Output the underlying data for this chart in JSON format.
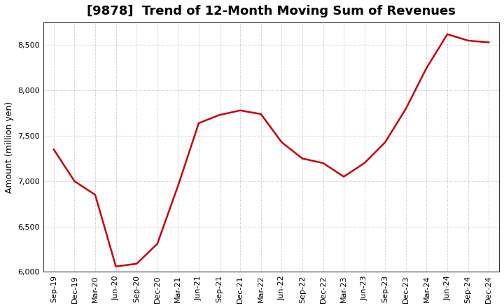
{
  "title": "[9878]  Trend of 12-Month Moving Sum of Revenues",
  "ylabel": "Amount (million yen)",
  "line_color": "#cc0000",
  "line_width": 1.8,
  "background_color": "#ffffff",
  "grid_color": "#999999",
  "ylim": [
    6000,
    8750
  ],
  "yticks": [
    6000,
    6500,
    7000,
    7500,
    8000,
    8500
  ],
  "labels": [
    "Sep-19",
    "Dec-19",
    "Mar-20",
    "Jun-20",
    "Sep-20",
    "Dec-20",
    "Mar-21",
    "Jun-21",
    "Sep-21",
    "Dec-21",
    "Mar-22",
    "Jun-22",
    "Sep-22",
    "Dec-22",
    "Mar-23",
    "Jun-23",
    "Sep-23",
    "Dec-23",
    "Mar-24",
    "Jun-24",
    "Sep-24",
    "Dec-24"
  ],
  "values": [
    7350,
    7000,
    6850,
    6060,
    6090,
    6310,
    6950,
    7640,
    7730,
    7780,
    7740,
    7430,
    7250,
    7200,
    7050,
    7200,
    7430,
    7800,
    8250,
    8620,
    8550,
    8530
  ],
  "title_fontsize": 13,
  "ylabel_fontsize": 9,
  "tick_fontsize": 8
}
